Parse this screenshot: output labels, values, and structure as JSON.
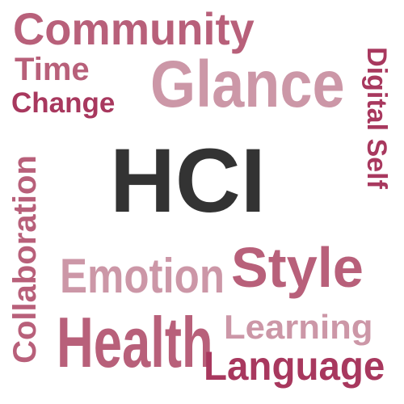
{
  "word_cloud": {
    "words": {
      "community": "Community",
      "time": "Time",
      "change": "Change",
      "glance": "Glance",
      "digital_self": "Digital Self",
      "hci": "HCI",
      "collaboration": "Collaboration",
      "emotion": "Emotion",
      "style": "Style",
      "learning": "Learning",
      "health": "Health",
      "language": "Language"
    },
    "colors": {
      "dark_rose": "#a8385e",
      "medium_rose": "#b8607a",
      "light_rose": "#cc97a7",
      "charcoal": "#333333"
    }
  }
}
